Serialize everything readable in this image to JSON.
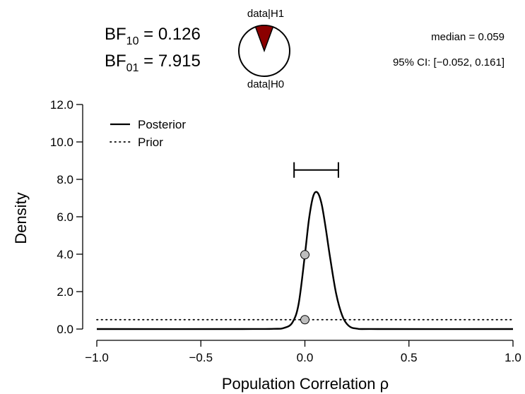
{
  "bf": {
    "label": "BF",
    "sub10": "10",
    "sub01": "01",
    "bf10_text": " = 0.126",
    "bf01_text": " = 7.915",
    "bf10": 0.126,
    "bf01": 7.915
  },
  "pie": {
    "top_label": "data|H1",
    "bottom_label": "data|H0",
    "h1_fraction": 0.112,
    "h1_color": "#8b0000",
    "h0_color": "#ffffff"
  },
  "summary": {
    "median_text": "median = 0.059",
    "ci_text": "95% CI: [−0.052, 0.161]",
    "median": 0.059,
    "ci_lower": -0.052,
    "ci_upper": 0.161
  },
  "chart_data": {
    "type": "line",
    "title": "",
    "xlabel": "Population Correlation ρ",
    "ylabel": "Density",
    "xlim": [
      -1.0,
      1.0
    ],
    "ylim": [
      0.0,
      12.0
    ],
    "x_ticks": [
      -1.0,
      -0.5,
      0.0,
      0.5,
      1.0
    ],
    "x_tick_labels": [
      "−1.0",
      "−0.5",
      "0.0",
      "0.5",
      "1.0"
    ],
    "y_ticks": [
      0.0,
      2.0,
      4.0,
      6.0,
      8.0,
      10.0,
      12.0
    ],
    "y_tick_labels": [
      "0.0",
      "2.0",
      "4.0",
      "6.0",
      "8.0",
      "10.0",
      "12.0"
    ],
    "grid": false,
    "legend_position": "top-left",
    "series": [
      {
        "name": "Posterior",
        "style": "solid",
        "x": [
          -1.0,
          -0.3,
          -0.15,
          -0.1,
          -0.06,
          -0.03,
          0.0,
          0.02,
          0.04,
          0.06,
          0.08,
          0.1,
          0.12,
          0.15,
          0.18,
          0.21,
          0.25,
          0.35,
          1.0
        ],
        "y": [
          0.0,
          0.0,
          0.01,
          0.06,
          0.35,
          1.35,
          3.97,
          5.9,
          7.1,
          7.3,
          6.7,
          5.4,
          3.9,
          1.9,
          0.7,
          0.18,
          0.02,
          0.0,
          0.0
        ]
      },
      {
        "name": "Prior",
        "style": "dotted",
        "x": [
          -1.0,
          1.0
        ],
        "y": [
          0.5,
          0.5
        ]
      }
    ],
    "points": [
      {
        "x": 0.0,
        "y": 3.97
      },
      {
        "x": 0.0,
        "y": 0.5
      }
    ],
    "ci_bar": {
      "lower": -0.052,
      "upper": 0.161,
      "y": 8.5
    }
  }
}
